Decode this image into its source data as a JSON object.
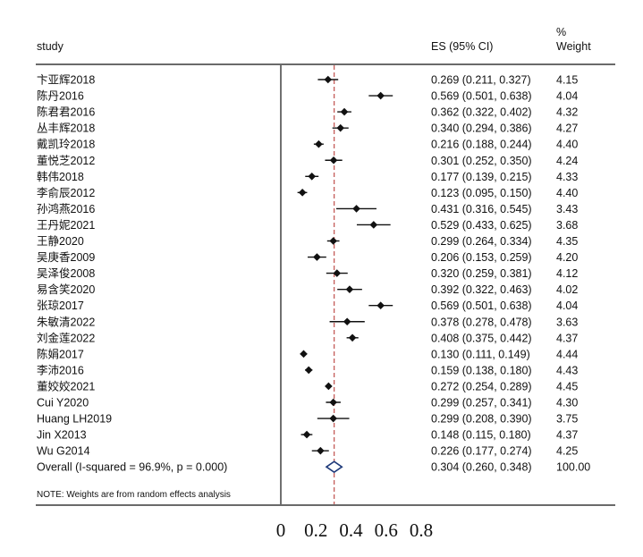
{
  "header": {
    "study": "study",
    "es": "ES (95% CI)",
    "weight_line1": "%",
    "weight_line2": "Weight"
  },
  "note": "NOTE: Weights are from random effects analysis",
  "colors": {
    "ink": "#111111",
    "reference_line": "#c0504d",
    "diamond": "#1f3a7a"
  },
  "chart_data": {
    "type": "forest",
    "x_axis": {
      "range": [
        0,
        0.8
      ],
      "ticks": [
        0,
        0.2,
        0.4,
        0.6,
        0.8
      ],
      "tick_labels": [
        "0",
        "0.2",
        "0.4",
        "0.6",
        "0.8"
      ]
    },
    "reference_line": 0.304,
    "studies": [
      {
        "study": "卞亚辉2018",
        "es": 0.269,
        "lo": 0.211,
        "hi": 0.327,
        "es_text": "0.269 (0.211, 0.327)",
        "weight": "4.15"
      },
      {
        "study": "陈丹2016",
        "es": 0.569,
        "lo": 0.501,
        "hi": 0.638,
        "es_text": "0.569 (0.501, 0.638)",
        "weight": "4.04"
      },
      {
        "study": "陈君君2016",
        "es": 0.362,
        "lo": 0.322,
        "hi": 0.402,
        "es_text": "0.362 (0.322, 0.402)",
        "weight": "4.32"
      },
      {
        "study": "丛丰辉2018",
        "es": 0.34,
        "lo": 0.294,
        "hi": 0.386,
        "es_text": "0.340 (0.294, 0.386)",
        "weight": "4.27"
      },
      {
        "study": "戴凯玲2018",
        "es": 0.216,
        "lo": 0.188,
        "hi": 0.244,
        "es_text": "0.216 (0.188, 0.244)",
        "weight": "4.40"
      },
      {
        "study": "董悦芝2012",
        "es": 0.301,
        "lo": 0.252,
        "hi": 0.35,
        "es_text": "0.301 (0.252, 0.350)",
        "weight": "4.24"
      },
      {
        "study": "韩伟2018",
        "es": 0.177,
        "lo": 0.139,
        "hi": 0.215,
        "es_text": "0.177 (0.139, 0.215)",
        "weight": "4.33"
      },
      {
        "study": "李俞辰2012",
        "es": 0.123,
        "lo": 0.095,
        "hi": 0.15,
        "es_text": "0.123 (0.095, 0.150)",
        "weight": "4.40"
      },
      {
        "study": "孙鸿燕2016",
        "es": 0.431,
        "lo": 0.316,
        "hi": 0.545,
        "es_text": "0.431 (0.316, 0.545)",
        "weight": "3.43"
      },
      {
        "study": "王丹妮2021",
        "es": 0.529,
        "lo": 0.433,
        "hi": 0.625,
        "es_text": "0.529 (0.433, 0.625)",
        "weight": "3.68"
      },
      {
        "study": "王静2020",
        "es": 0.299,
        "lo": 0.264,
        "hi": 0.334,
        "es_text": "0.299 (0.264, 0.334)",
        "weight": "4.35"
      },
      {
        "study": "吴庚香2009",
        "es": 0.206,
        "lo": 0.153,
        "hi": 0.259,
        "es_text": "0.206 (0.153, 0.259)",
        "weight": "4.20"
      },
      {
        "study": "吴泽俊2008",
        "es": 0.32,
        "lo": 0.259,
        "hi": 0.381,
        "es_text": "0.320 (0.259, 0.381)",
        "weight": "4.12"
      },
      {
        "study": "易含笑2020",
        "es": 0.392,
        "lo": 0.322,
        "hi": 0.463,
        "es_text": "0.392 (0.322, 0.463)",
        "weight": "4.02"
      },
      {
        "study": "张琼2017",
        "es": 0.569,
        "lo": 0.501,
        "hi": 0.638,
        "es_text": "0.569 (0.501, 0.638)",
        "weight": "4.04"
      },
      {
        "study": "朱敏清2022",
        "es": 0.378,
        "lo": 0.278,
        "hi": 0.478,
        "es_text": "0.378 (0.278, 0.478)",
        "weight": "3.63"
      },
      {
        "study": "刘金莲2022",
        "es": 0.408,
        "lo": 0.375,
        "hi": 0.442,
        "es_text": "0.408 (0.375, 0.442)",
        "weight": "4.37"
      },
      {
        "study": "陈娟2017",
        "es": 0.13,
        "lo": 0.111,
        "hi": 0.149,
        "es_text": "0.130 (0.111, 0.149)",
        "weight": "4.44"
      },
      {
        "study": "李沛2016",
        "es": 0.159,
        "lo": 0.138,
        "hi": 0.18,
        "es_text": "0.159 (0.138, 0.180)",
        "weight": "4.43"
      },
      {
        "study": "董姣姣2021",
        "es": 0.272,
        "lo": 0.254,
        "hi": 0.289,
        "es_text": "0.272 (0.254, 0.289)",
        "weight": "4.45"
      },
      {
        "study": "Cui Y2020",
        "es": 0.299,
        "lo": 0.257,
        "hi": 0.341,
        "es_text": "0.299 (0.257, 0.341)",
        "weight": "4.30"
      },
      {
        "study": "Huang LH2019",
        "es": 0.299,
        "lo": 0.208,
        "hi": 0.39,
        "es_text": "0.299 (0.208, 0.390)",
        "weight": "3.75"
      },
      {
        "study": "Jin X2013",
        "es": 0.148,
        "lo": 0.115,
        "hi": 0.18,
        "es_text": "0.148 (0.115, 0.180)",
        "weight": "4.37"
      },
      {
        "study": "Wu G2014",
        "es": 0.226,
        "lo": 0.177,
        "hi": 0.274,
        "es_text": "0.226 (0.177, 0.274)",
        "weight": "4.25"
      }
    ],
    "overall": {
      "label": "Overall  (I-squared = 96.9%, p = 0.000)",
      "es": 0.304,
      "lo": 0.26,
      "hi": 0.348,
      "es_text": "0.304 (0.260, 0.348)",
      "weight": "100.00"
    }
  }
}
